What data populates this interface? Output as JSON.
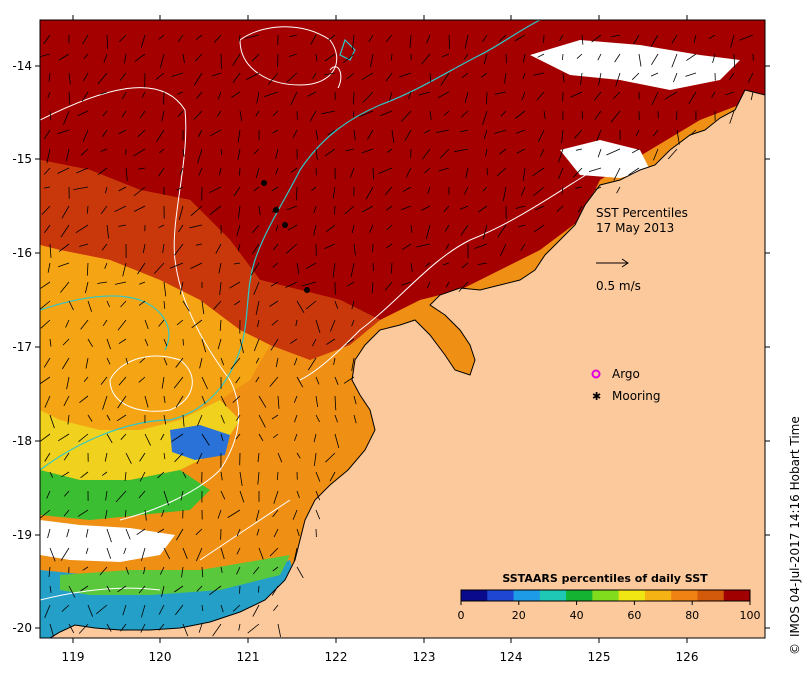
{
  "map": {
    "title_line1": "SST Percentiles",
    "title_line2": "17 May 2013",
    "scale_arrow_label": "0.5 m/s",
    "legend": [
      {
        "label": "Argo",
        "symbol": "magenta-circle-icon",
        "color": "#e000e0"
      },
      {
        "label": "Mooring",
        "symbol": "black-star-icon",
        "color": "#000000"
      }
    ],
    "x_ticks": [
      "119",
      "120",
      "121",
      "122",
      "123",
      "124",
      "125",
      "126"
    ],
    "y_ticks": [
      "-14",
      "-15",
      "-16",
      "-17",
      "-18",
      "-19",
      "-20"
    ],
    "land_color": "#fcc99c",
    "nodata_color": "#ffffff"
  },
  "colorbar": {
    "title": "SSTAARS percentiles of daily SST",
    "tick_labels": [
      "0",
      "20",
      "40",
      "60",
      "80",
      "100"
    ],
    "colors": [
      "#0a0a8c",
      "#1e46d2",
      "#1e9be6",
      "#1ec8b4",
      "#14b432",
      "#82dc1e",
      "#f0e614",
      "#f5b414",
      "#f08214",
      "#d25a0a",
      "#a00000"
    ]
  },
  "credit": "IMOS 04-Jul-2017 14:16 Hobart Time",
  "copyright_symbol": "©"
}
